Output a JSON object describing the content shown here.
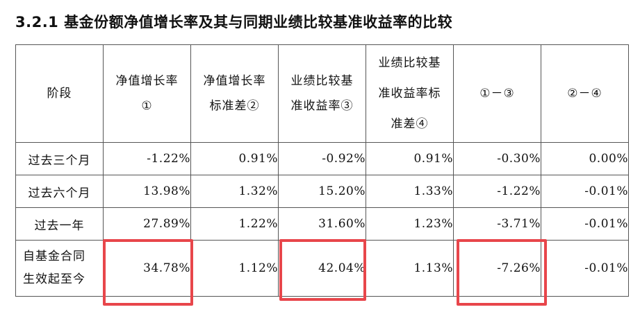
{
  "title": "3.2.1 基金份额净值增长率及其与同期业绩比较基准收益率的比较",
  "table": {
    "headers": [
      "阶段",
      "净值增长率①",
      "净值增长率标准差②",
      "业绩比较基准收益率③",
      "业绩比较基准收益率标准差④",
      "①－③",
      "②－④"
    ],
    "rows": [
      {
        "period": "过去三个月",
        "cells": [
          "-1.22%",
          "0.91%",
          "-0.92%",
          "0.91%",
          "-0.30%",
          "0.00%"
        ]
      },
      {
        "period": "过去六个月",
        "cells": [
          "13.98%",
          "1.32%",
          "15.20%",
          "1.33%",
          "-1.22%",
          "-0.01%"
        ]
      },
      {
        "period": "过去一年",
        "cells": [
          "27.89%",
          "1.22%",
          "31.60%",
          "1.23%",
          "-3.71%",
          "-0.01%"
        ]
      },
      {
        "period": "自基金合同生效起至今",
        "cells": [
          "34.78%",
          "1.12%",
          "42.04%",
          "1.13%",
          "-7.26%",
          "-0.01%"
        ]
      }
    ]
  },
  "highlight_color": "#e8464b",
  "highlighted_cells": [
    {
      "row": 3,
      "column": 1
    },
    {
      "row": 3,
      "column": 3
    },
    {
      "row": 3,
      "column": 5
    }
  ]
}
